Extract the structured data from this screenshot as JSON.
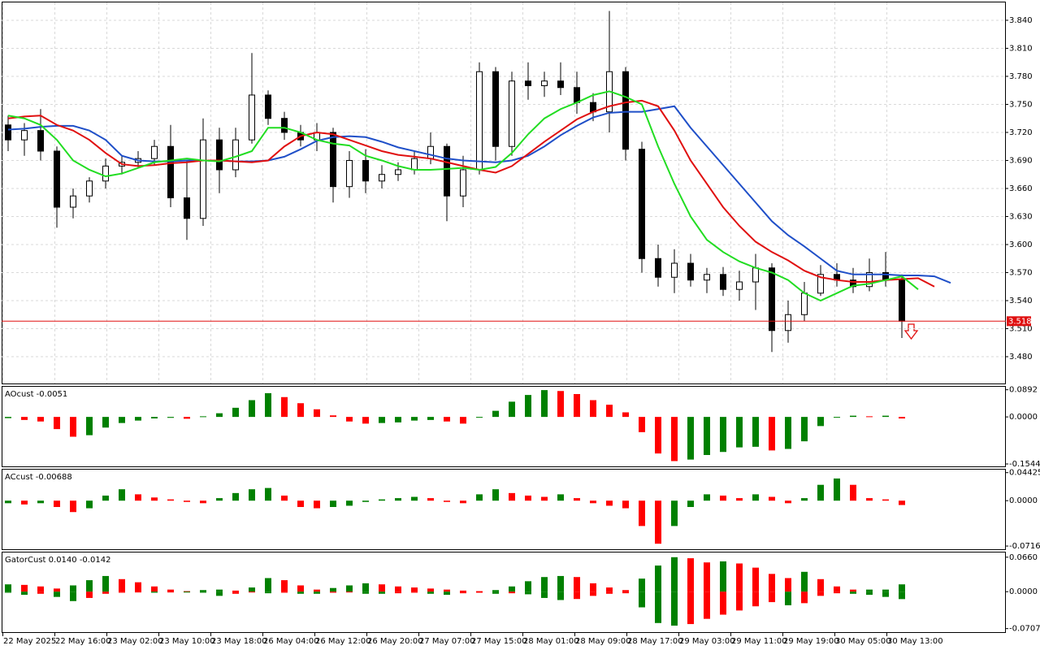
{
  "chart_data": [
    {
      "type": "candlestick",
      "open": [
        3.728,
        3.712,
        3.722,
        3.7,
        3.64,
        3.652,
        3.668,
        3.684,
        3.688,
        3.692,
        3.705,
        3.65,
        3.628,
        3.712,
        3.68,
        3.712,
        3.76,
        3.735,
        3.72,
        3.712,
        3.72,
        3.662,
        3.69,
        3.668,
        3.675,
        3.68,
        3.692,
        3.705,
        3.652,
        3.68,
        3.785,
        3.705,
        3.775,
        3.77,
        3.775,
        3.768,
        3.752,
        3.742,
        3.785,
        3.702,
        3.585,
        3.565,
        3.58,
        3.562,
        3.568,
        3.552,
        3.56,
        3.575,
        3.508,
        3.525,
        3.548,
        3.568,
        3.562,
        3.555,
        3.57,
        3.562
      ],
      "high": [
        3.738,
        3.73,
        3.745,
        3.705,
        3.66,
        3.672,
        3.692,
        3.695,
        3.7,
        3.712,
        3.728,
        3.69,
        3.735,
        3.725,
        3.725,
        3.805,
        3.765,
        3.742,
        3.728,
        3.73,
        3.725,
        3.7,
        3.702,
        3.685,
        3.688,
        3.7,
        3.72,
        3.708,
        3.695,
        3.795,
        3.79,
        3.785,
        3.795,
        3.785,
        3.795,
        3.785,
        3.762,
        3.85,
        3.79,
        3.71,
        3.6,
        3.595,
        3.59,
        3.575,
        3.576,
        3.572,
        3.59,
        3.58,
        3.54,
        3.56,
        3.578,
        3.58,
        3.575,
        3.585,
        3.592,
        3.568
      ],
      "low": [
        3.7,
        3.695,
        3.69,
        3.618,
        3.628,
        3.645,
        3.66,
        3.675,
        3.682,
        3.685,
        3.64,
        3.605,
        3.62,
        3.655,
        3.672,
        3.708,
        3.728,
        3.712,
        3.705,
        3.7,
        3.645,
        3.65,
        3.655,
        3.66,
        3.668,
        3.675,
        3.686,
        3.625,
        3.64,
        3.675,
        3.69,
        3.695,
        3.755,
        3.758,
        3.76,
        3.74,
        3.732,
        3.72,
        3.69,
        3.57,
        3.555,
        3.548,
        3.555,
        3.548,
        3.545,
        3.54,
        3.53,
        3.485,
        3.495,
        3.518,
        3.545,
        3.555,
        3.548,
        3.55,
        3.555,
        3.5
      ],
      "close": [
        3.712,
        3.722,
        3.7,
        3.64,
        3.652,
        3.668,
        3.684,
        3.688,
        3.692,
        3.705,
        3.65,
        3.628,
        3.712,
        3.68,
        3.712,
        3.76,
        3.735,
        3.72,
        3.712,
        3.72,
        3.662,
        3.69,
        3.668,
        3.675,
        3.68,
        3.692,
        3.705,
        3.652,
        3.68,
        3.785,
        3.705,
        3.775,
        3.77,
        3.775,
        3.768,
        3.752,
        3.742,
        3.785,
        3.702,
        3.585,
        3.565,
        3.58,
        3.562,
        3.568,
        3.552,
        3.56,
        3.575,
        3.508,
        3.525,
        3.548,
        3.568,
        3.562,
        3.555,
        3.57,
        3.562,
        3.518
      ],
      "series": [
        {
          "color": "#1f4fc8",
          "values": [
            3.723,
            3.724,
            3.726,
            3.727,
            3.727,
            3.722,
            3.712,
            3.695,
            3.69,
            3.689,
            3.689,
            3.69,
            3.69,
            3.69,
            3.689,
            3.689,
            3.69,
            3.694,
            3.702,
            3.711,
            3.715,
            3.716,
            3.715,
            3.71,
            3.704,
            3.7,
            3.696,
            3.692,
            3.69,
            3.689,
            3.688,
            3.69,
            3.695,
            3.705,
            3.717,
            3.727,
            3.736,
            3.741,
            3.742,
            3.742,
            3.745,
            3.748,
            3.725,
            3.705,
            3.685,
            3.665,
            3.645,
            3.625,
            3.61,
            3.598,
            3.585,
            3.572,
            3.568,
            3.568,
            3.568,
            3.567,
            3.567,
            3.566,
            3.559
          ]
        },
        {
          "color": "#e01010",
          "values": [
            3.735,
            3.737,
            3.738,
            3.728,
            3.722,
            3.712,
            3.698,
            3.686,
            3.684,
            3.685,
            3.687,
            3.688,
            3.69,
            3.69,
            3.689,
            3.688,
            3.69,
            3.705,
            3.716,
            3.72,
            3.718,
            3.712,
            3.706,
            3.7,
            3.696,
            3.694,
            3.692,
            3.688,
            3.684,
            3.68,
            3.677,
            3.684,
            3.697,
            3.71,
            3.722,
            3.734,
            3.742,
            3.748,
            3.752,
            3.754,
            3.748,
            3.722,
            3.69,
            3.665,
            3.64,
            3.62,
            3.603,
            3.592,
            3.583,
            3.572,
            3.565,
            3.562,
            3.56,
            3.56,
            3.562,
            3.563,
            3.564,
            3.555,
            null
          ]
        },
        {
          "color": "#22dd22",
          "values": [
            3.738,
            3.735,
            3.728,
            3.712,
            3.69,
            3.68,
            3.673,
            3.676,
            3.682,
            3.688,
            3.69,
            3.692,
            3.69,
            3.689,
            3.694,
            3.7,
            3.725,
            3.725,
            3.72,
            3.712,
            3.708,
            3.706,
            3.695,
            3.69,
            3.684,
            3.68,
            3.68,
            3.681,
            3.682,
            3.68,
            3.683,
            3.698,
            3.718,
            3.735,
            3.745,
            3.752,
            3.76,
            3.764,
            3.758,
            3.75,
            3.705,
            3.665,
            3.63,
            3.605,
            3.592,
            3.582,
            3.575,
            3.57,
            3.562,
            3.548,
            3.54,
            3.548,
            3.556,
            3.558,
            3.562,
            3.566,
            3.552,
            null,
            null
          ]
        }
      ],
      "current_price": 3.518,
      "current_price_color": "#e01010",
      "ylim": [
        3.4513,
        3.8591
      ],
      "yticks": [
        {
          "value": 3.48,
          "label": "3.480"
        },
        {
          "value": 3.51,
          "label": "3.510"
        },
        {
          "value": 3.54,
          "label": "3.540"
        },
        {
          "value": 3.57,
          "label": "3.570"
        },
        {
          "value": 3.6,
          "label": "3.600"
        },
        {
          "value": 3.63,
          "label": "3.630"
        },
        {
          "value": 3.66,
          "label": "3.660"
        },
        {
          "value": 3.69,
          "label": "3.690"
        },
        {
          "value": 3.72,
          "label": "3.720"
        },
        {
          "value": 3.75,
          "label": "3.750"
        },
        {
          "value": 3.78,
          "label": "3.780"
        },
        {
          "value": 3.81,
          "label": "3.810"
        },
        {
          "value": 3.84,
          "label": "3.840"
        }
      ],
      "grid": true
    },
    {
      "type": "histogram",
      "title": "AOcust -0.0051",
      "values": [
        -0.004,
        -0.01,
        -0.015,
        -0.04,
        -0.065,
        -0.06,
        -0.035,
        -0.02,
        -0.012,
        -0.005,
        -0.003,
        -0.006,
        0.002,
        0.012,
        0.03,
        0.055,
        0.078,
        0.065,
        0.045,
        0.025,
        0.005,
        -0.015,
        -0.022,
        -0.02,
        -0.018,
        -0.012,
        -0.01,
        -0.015,
        -0.022,
        -0.002,
        0.02,
        0.05,
        0.072,
        0.088,
        0.085,
        0.075,
        0.055,
        0.04,
        0.015,
        -0.05,
        -0.12,
        -0.145,
        -0.14,
        -0.125,
        -0.115,
        -0.1,
        -0.098,
        -0.11,
        -0.105,
        -0.08,
        -0.03,
        -0.002,
        0.004,
        0.002,
        0.004,
        -0.0051
      ],
      "up_color": "#008000",
      "down_color": "#ff0000",
      "ylim": [
        -0.165,
        0.099
      ],
      "yticks": [
        -0.1544,
        {
          "value": 0,
          "label": "0.0000"
        },
        0.0892
      ]
    },
    {
      "type": "histogram",
      "title": "ACcust -0.00688",
      "values": [
        -0.004,
        -0.006,
        -0.004,
        -0.01,
        -0.018,
        -0.012,
        0.008,
        0.018,
        0.01,
        0.005,
        0.002,
        -0.002,
        -0.004,
        0.004,
        0.012,
        0.018,
        0.02,
        0.008,
        -0.01,
        -0.012,
        -0.01,
        -0.008,
        -0.002,
        0.002,
        0.004,
        0.006,
        0.004,
        -0.002,
        -0.004,
        0.01,
        0.018,
        0.012,
        0.008,
        0.006,
        0.01,
        0.004,
        -0.004,
        -0.008,
        -0.012,
        -0.04,
        -0.068,
        -0.04,
        -0.01,
        0.01,
        0.008,
        0.004,
        0.01,
        0.006,
        -0.004,
        0.004,
        0.025,
        0.035,
        0.025,
        0.004,
        0.002,
        -0.00688
      ],
      "up_color": "#008000",
      "down_color": "#ff0000",
      "ylim": [
        -0.078,
        0.049
      ],
      "yticks": [
        -0.07166,
        {
          "value": 0,
          "label": "0.0000"
        },
        0.04425
      ]
    },
    {
      "type": "gator",
      "title": "GatorCust 0.0140 -0.0142",
      "upper": [
        0.014,
        0.013,
        0.01,
        0.006,
        0.012,
        0.022,
        0.03,
        0.024,
        0.018,
        0.01,
        0.004,
        0.001,
        0.003,
        0.004,
        0.002,
        0.008,
        0.026,
        0.022,
        0.012,
        0.004,
        0.007,
        0.012,
        0.016,
        0.014,
        0.01,
        0.008,
        0.006,
        0.004,
        0.002,
        0.001,
        0.003,
        0.01,
        0.02,
        0.028,
        0.03,
        0.028,
        0.016,
        0.008,
        0.003,
        0.025,
        0.05,
        0.066,
        0.064,
        0.056,
        0.058,
        0.054,
        0.046,
        0.034,
        0.026,
        0.038,
        0.024,
        0.01,
        0.004,
        0.004,
        0.004,
        0.014
      ],
      "lower": [
        -0.002,
        -0.006,
        -0.004,
        -0.01,
        -0.018,
        -0.012,
        -0.004,
        -0.002,
        -0.001,
        -0.002,
        -0.001,
        -0.001,
        -0.002,
        -0.008,
        -0.004,
        -0.001,
        -0.003,
        -0.002,
        -0.004,
        -0.004,
        -0.002,
        -0.001,
        -0.004,
        -0.004,
        -0.003,
        -0.002,
        -0.004,
        -0.006,
        -0.003,
        -0.002,
        -0.004,
        -0.003,
        -0.005,
        -0.012,
        -0.016,
        -0.014,
        -0.008,
        -0.004,
        -0.003,
        -0.03,
        -0.06,
        -0.065,
        -0.062,
        -0.052,
        -0.044,
        -0.036,
        -0.028,
        -0.02,
        -0.026,
        -0.022,
        -0.008,
        -0.003,
        -0.004,
        -0.006,
        -0.01,
        -0.0142
      ],
      "up_color": "#008000",
      "down_color": "#ff0000",
      "ylim": [
        -0.079,
        0.075
      ],
      "yticks": [
        -0.0707,
        {
          "value": 0,
          "label": "0.0000"
        },
        {
          "value": 0.066,
          "label": "0.0660"
        }
      ],
      "x_labels": [
        "22 May 2025",
        "22 May 16:00",
        "23 May 02:00",
        "23 May 10:00",
        "23 May 18:00",
        "26 May 04:00",
        "26 May 12:00",
        "26 May 20:00",
        "27 May 07:00",
        "27 May 15:00",
        "28 May 01:00",
        "28 May 09:00",
        "28 May 17:00",
        "29 May 03:00",
        "29 May 11:00",
        "29 May 19:00",
        "30 May 05:00",
        "30 May 13:00"
      ]
    }
  ]
}
